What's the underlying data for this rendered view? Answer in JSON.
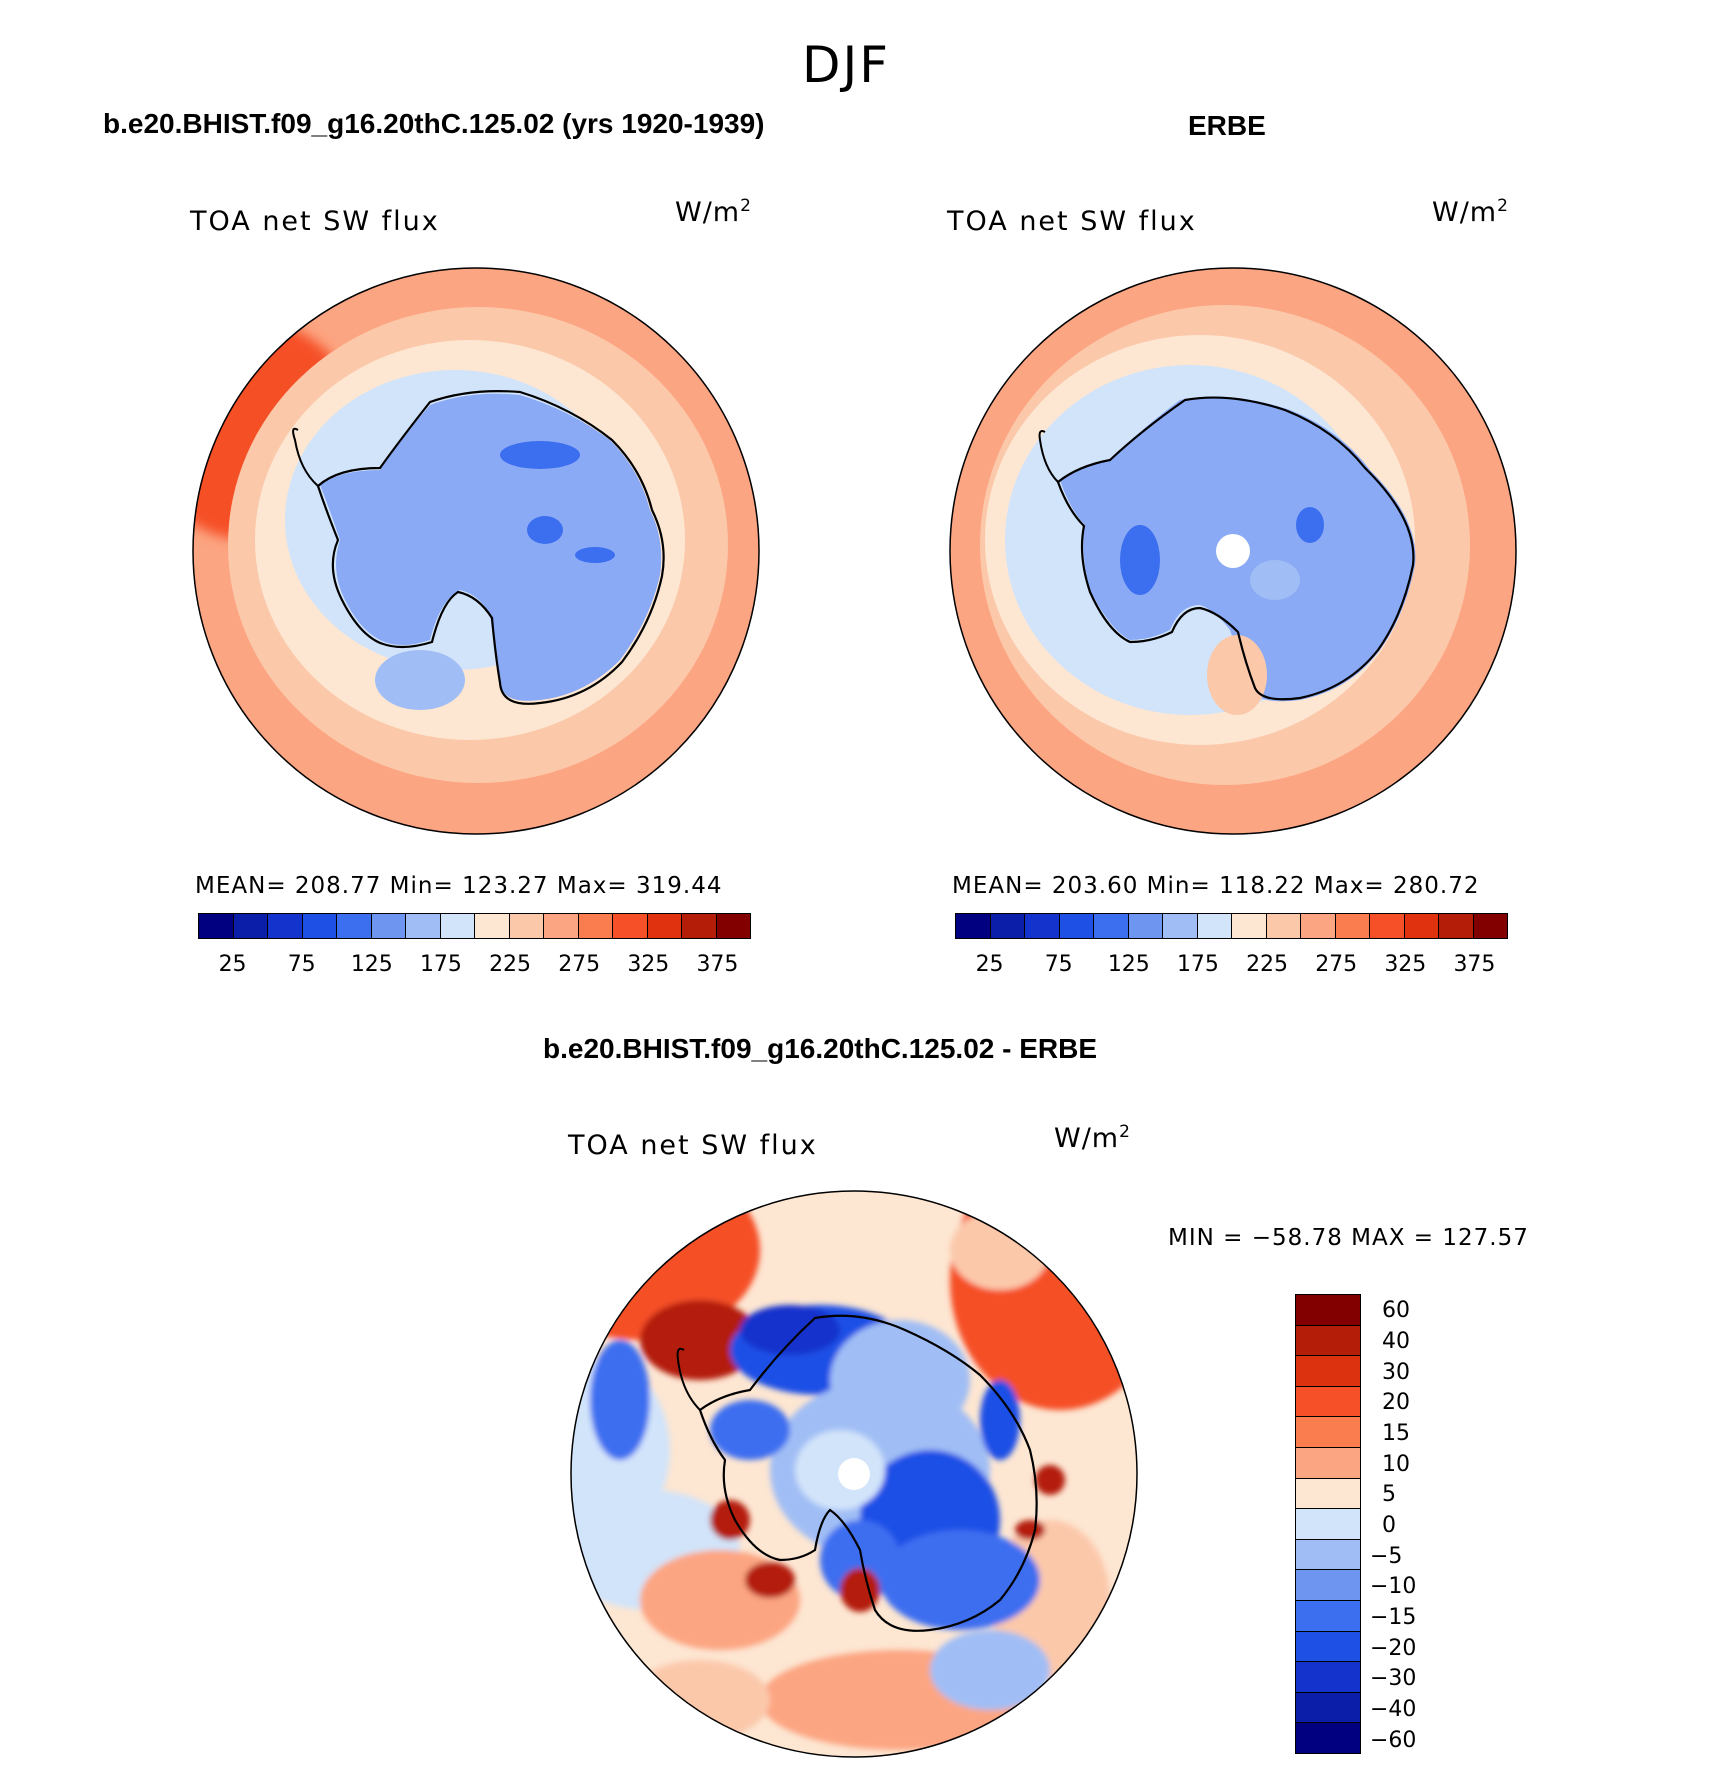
{
  "season": "DJF",
  "panels": [
    {
      "title": "b.e20.BHIST.f09_g16.20thC.125.02 (yrs 1920-1939)",
      "variable": "TOA net SW flux",
      "units_base": "W/m",
      "units_exp": "2",
      "stats": "MEAN= 208.77   Min= 123.27   Max= 319.44"
    },
    {
      "title": "ERBE",
      "variable": "TOA net SW flux",
      "units_base": "W/m",
      "units_exp": "2",
      "stats": "MEAN= 203.60   Min= 118.22   Max= 280.72"
    },
    {
      "title": "b.e20.BHIST.f09_g16.20thC.125.02 - ERBE",
      "variable": "TOA net SW flux",
      "units_base": "W/m",
      "units_exp": "2",
      "stats": "MIN = −58.78 MAX = 127.57"
    }
  ],
  "colorbar_abs": {
    "colors": [
      "#000080",
      "#0a1eaa",
      "#1432cc",
      "#1e50e6",
      "#3c6ef0",
      "#6e96f0",
      "#a0bef5",
      "#d2e4fa",
      "#fde6d2",
      "#fcc8aa",
      "#fca582",
      "#fa7d50",
      "#f55028",
      "#e1320f",
      "#b41e08",
      "#820000"
    ],
    "labels": [
      "25",
      "75",
      "125",
      "175",
      "225",
      "275",
      "325",
      "375"
    ]
  },
  "colorbar_diff": {
    "colors": [
      "#820000",
      "#b41e08",
      "#dc320f",
      "#f55028",
      "#fa7d50",
      "#fca582",
      "#fde6d2",
      "#d2e4fa",
      "#a0bef5",
      "#6e96f0",
      "#3c6ef0",
      "#1e50e6",
      "#1432cc",
      "#0a1eaa",
      "#000080"
    ],
    "labels": [
      "60",
      "40",
      "30",
      "20",
      "15",
      "10",
      "5",
      "0",
      "−5",
      "−10",
      "−15",
      "−20",
      "−30",
      "−40",
      "−60"
    ]
  },
  "map_colors": {
    "outer": "#fca582",
    "deep": "#f55028",
    "mid": "#fcc8aa",
    "light": "#fde6d2",
    "pale_blue": "#d2e4fa",
    "light_blue": "#a0bef5",
    "ice": "#8aaaf5",
    "ice_dark": "#3c6ef0",
    "blue": "#1e50e6",
    "dark_red": "#b41e08"
  }
}
